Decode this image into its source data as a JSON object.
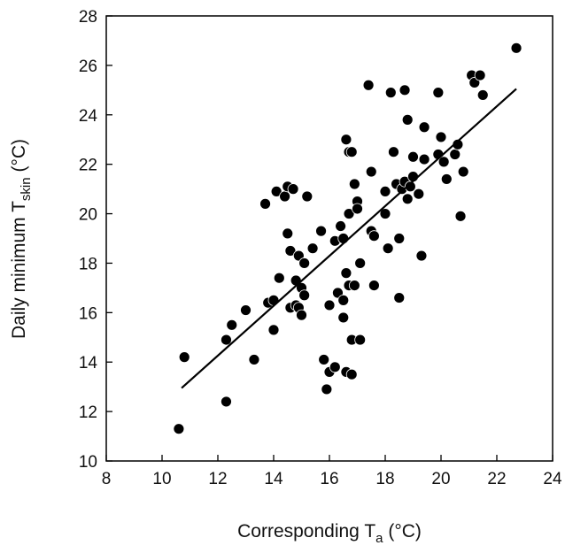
{
  "chart_data": {
    "type": "scatter",
    "title": "",
    "xlabel": {
      "main": "Corresponding T",
      "subscript": "a",
      "unit": " (°C)"
    },
    "ylabel": {
      "main": "Daily minimum T",
      "subscript": "skin",
      "unit": " (°C)"
    },
    "xlim": [
      8,
      24
    ],
    "ylim": [
      10,
      28
    ],
    "xticks": [
      8,
      10,
      12,
      14,
      16,
      18,
      20,
      22,
      24
    ],
    "yticks": [
      10,
      12,
      14,
      16,
      18,
      20,
      22,
      24,
      26,
      28
    ],
    "grid": false,
    "legend": "none",
    "marker_color": "#000000",
    "line_color": "#000000",
    "points": [
      [
        10.6,
        11.3
      ],
      [
        10.8,
        14.2
      ],
      [
        12.3,
        12.4
      ],
      [
        12.3,
        14.9
      ],
      [
        12.5,
        15.5
      ],
      [
        13.0,
        16.1
      ],
      [
        13.3,
        14.1
      ],
      [
        13.7,
        20.4
      ],
      [
        13.8,
        16.4
      ],
      [
        14.0,
        15.3
      ],
      [
        14.0,
        16.5
      ],
      [
        14.1,
        20.9
      ],
      [
        14.2,
        17.4
      ],
      [
        14.4,
        20.7
      ],
      [
        14.5,
        19.2
      ],
      [
        14.5,
        21.1
      ],
      [
        14.6,
        18.5
      ],
      [
        14.6,
        16.2
      ],
      [
        14.7,
        21.0
      ],
      [
        14.8,
        17.3
      ],
      [
        14.8,
        16.3
      ],
      [
        14.9,
        18.3
      ],
      [
        14.9,
        16.2
      ],
      [
        15.0,
        17.0
      ],
      [
        15.0,
        15.9
      ],
      [
        15.1,
        16.7
      ],
      [
        15.1,
        18.0
      ],
      [
        15.2,
        20.7
      ],
      [
        15.4,
        18.6
      ],
      [
        15.7,
        19.3
      ],
      [
        15.8,
        14.1
      ],
      [
        15.9,
        12.9
      ],
      [
        16.0,
        13.6
      ],
      [
        16.0,
        16.3
      ],
      [
        16.2,
        13.8
      ],
      [
        16.2,
        18.9
      ],
      [
        16.3,
        16.8
      ],
      [
        16.4,
        19.5
      ],
      [
        16.5,
        19.0
      ],
      [
        16.5,
        15.8
      ],
      [
        16.5,
        16.5
      ],
      [
        16.6,
        23.0
      ],
      [
        16.6,
        17.6
      ],
      [
        16.6,
        13.6
      ],
      [
        16.7,
        22.5
      ],
      [
        16.7,
        20.0
      ],
      [
        16.7,
        17.1
      ],
      [
        16.8,
        22.5
      ],
      [
        16.8,
        13.5
      ],
      [
        16.8,
        14.9
      ],
      [
        16.9,
        17.1
      ],
      [
        16.9,
        21.2
      ],
      [
        17.0,
        20.5
      ],
      [
        17.0,
        20.2
      ],
      [
        17.1,
        14.9
      ],
      [
        17.1,
        18.0
      ],
      [
        17.4,
        25.2
      ],
      [
        17.5,
        19.3
      ],
      [
        17.5,
        21.7
      ],
      [
        17.6,
        17.1
      ],
      [
        17.6,
        19.1
      ],
      [
        18.0,
        20.0
      ],
      [
        18.0,
        20.9
      ],
      [
        18.1,
        18.6
      ],
      [
        18.2,
        24.9
      ],
      [
        18.3,
        22.5
      ],
      [
        18.4,
        21.2
      ],
      [
        18.5,
        19.0
      ],
      [
        18.5,
        16.6
      ],
      [
        18.6,
        21.0
      ],
      [
        18.7,
        25.0
      ],
      [
        18.7,
        21.3
      ],
      [
        18.8,
        23.8
      ],
      [
        18.8,
        20.6
      ],
      [
        18.9,
        21.1
      ],
      [
        19.0,
        21.5
      ],
      [
        19.0,
        22.3
      ],
      [
        19.2,
        20.8
      ],
      [
        19.3,
        18.3
      ],
      [
        19.4,
        23.5
      ],
      [
        19.4,
        22.2
      ],
      [
        19.9,
        24.9
      ],
      [
        19.9,
        22.4
      ],
      [
        20.0,
        23.1
      ],
      [
        20.1,
        22.1
      ],
      [
        20.2,
        21.4
      ],
      [
        20.5,
        22.4
      ],
      [
        20.6,
        22.8
      ],
      [
        20.7,
        19.9
      ],
      [
        20.8,
        21.7
      ],
      [
        21.1,
        25.6
      ],
      [
        21.2,
        25.3
      ],
      [
        21.4,
        25.6
      ],
      [
        21.5,
        24.8
      ],
      [
        22.7,
        26.7
      ]
    ],
    "regression_line": {
      "x": [
        10.7,
        22.7
      ],
      "y": [
        12.95,
        25.05
      ]
    }
  }
}
